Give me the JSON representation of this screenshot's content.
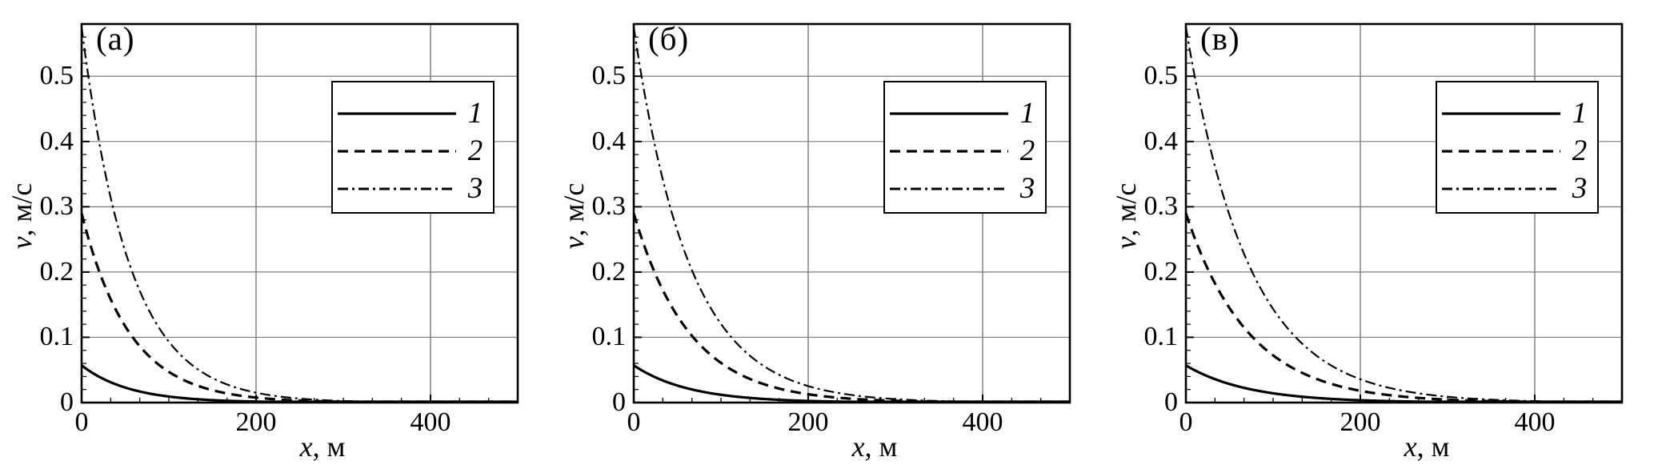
{
  "figure": {
    "background": "#ffffff",
    "panels": [
      {
        "label": "(а)"
      },
      {
        "label": "(б)"
      },
      {
        "label": "(в)"
      }
    ]
  },
  "axes": {
    "x": {
      "title_italic": "x",
      "title_rest": ", м",
      "min": 0,
      "max": 500,
      "tick_values": [
        0,
        200,
        400
      ],
      "tick_labels": [
        "0",
        "200",
        "400"
      ],
      "minor_divisions_per_major": 6
    },
    "y": {
      "title_italic": "v",
      "title_rest": ", м/с",
      "min": 0,
      "max": 0.58,
      "tick_values": [
        0,
        0.1,
        0.2,
        0.3,
        0.4,
        0.5
      ],
      "tick_labels": [
        "0",
        "0.1",
        "0.2",
        "0.3",
        "0.4",
        "0.5"
      ],
      "minor_step": 0.02
    }
  },
  "legend": {
    "entries": [
      {
        "label": "1",
        "line_style": "solid"
      },
      {
        "label": "2",
        "line_style": "dashed"
      },
      {
        "label": "3",
        "line_style": "dashdot"
      }
    ]
  },
  "line_styles": {
    "solid": {
      "stroke_width": 3.2,
      "dasharray": ""
    },
    "dashed": {
      "stroke_width": 3.2,
      "dasharray": "13 8"
    },
    "dashdot": {
      "stroke_width": 2.2,
      "dasharray": "13 5 3 5"
    }
  },
  "colors": {
    "curve": "#000000",
    "grid": "#7b7b7b",
    "axis": "#000000",
    "text": "#000000",
    "legend_border": "#000000",
    "background": "#ffffff"
  },
  "chart_data": [
    {
      "type": "line",
      "title": "(а)",
      "xlabel": "x, м",
      "ylabel": "v, м/с",
      "xlim": [
        0,
        500
      ],
      "ylim": [
        0,
        0.58
      ],
      "x_ticks": [
        0,
        200,
        400
      ],
      "y_ticks": [
        0,
        0.1,
        0.2,
        0.3,
        0.4,
        0.5
      ],
      "grid": true,
      "legend_position": "upper right",
      "x_sample_m": [
        0,
        50,
        100,
        150,
        200,
        250,
        300,
        350,
        400,
        450,
        500
      ],
      "series": [
        {
          "name": "1",
          "line_style": "solid",
          "v0": 0.057,
          "decay_length_m": 55,
          "values": [
            0.057,
            0.023,
            0.0093,
            0.0037,
            0.0015,
            0.0006,
            0.0002,
            0.0001,
            0,
            0,
            0
          ]
        },
        {
          "name": "2",
          "line_style": "dashed",
          "v0": 0.29,
          "decay_length_m": 55,
          "values": [
            0.29,
            0.1168,
            0.0471,
            0.019,
            0.0076,
            0.0031,
            0.0012,
            0.0005,
            0.0002,
            0.0001,
            0
          ]
        },
        {
          "name": "3",
          "line_style": "dashdot",
          "v0": 0.575,
          "decay_length_m": 55,
          "values": [
            0.575,
            0.2317,
            0.0933,
            0.0376,
            0.0152,
            0.0061,
            0.0025,
            0.001,
            0.0004,
            0.0002,
            0.0001
          ]
        }
      ]
    },
    {
      "type": "line",
      "title": "(б)",
      "xlabel": "x, м",
      "ylabel": "v, м/с",
      "xlim": [
        0,
        500
      ],
      "ylim": [
        0,
        0.58
      ],
      "x_ticks": [
        0,
        200,
        400
      ],
      "y_ticks": [
        0,
        0.1,
        0.2,
        0.3,
        0.4,
        0.5
      ],
      "grid": true,
      "legend_position": "upper right",
      "x_sample_m": [
        0,
        50,
        100,
        150,
        200,
        250,
        300,
        350,
        400,
        450,
        500
      ],
      "series": [
        {
          "name": "1",
          "line_style": "solid",
          "v0": 0.057,
          "decay_length_m": 64,
          "values": [
            0.057,
            0.0261,
            0.0119,
            0.0055,
            0.0025,
            0.0011,
            0.0005,
            0.0002,
            0.0001,
            0,
            0
          ]
        },
        {
          "name": "2",
          "line_style": "dashed",
          "v0": 0.29,
          "decay_length_m": 64,
          "values": [
            0.29,
            0.1328,
            0.0608,
            0.0278,
            0.0127,
            0.0058,
            0.0027,
            0.0012,
            0.0006,
            0.0003,
            0.0001
          ]
        },
        {
          "name": "3",
          "line_style": "dashdot",
          "v0": 0.575,
          "decay_length_m": 64,
          "values": [
            0.575,
            0.2633,
            0.1205,
            0.0552,
            0.0253,
            0.0116,
            0.0053,
            0.0024,
            0.0011,
            0.0005,
            0.0002
          ]
        }
      ]
    },
    {
      "type": "line",
      "title": "(в)",
      "xlabel": "x, м",
      "ylabel": "v, м/с",
      "xlim": [
        0,
        500
      ],
      "ylim": [
        0,
        0.58
      ],
      "x_ticks": [
        0,
        200,
        400
      ],
      "y_ticks": [
        0,
        0.1,
        0.2,
        0.3,
        0.4,
        0.5
      ],
      "grid": true,
      "legend_position": "upper right",
      "x_sample_m": [
        0,
        50,
        100,
        150,
        200,
        250,
        300,
        350,
        400,
        450,
        500
      ],
      "series": [
        {
          "name": "1",
          "line_style": "solid",
          "v0": 0.057,
          "decay_length_m": 72,
          "values": [
            0.057,
            0.0285,
            0.0142,
            0.0071,
            0.0035,
            0.0018,
            0.0009,
            0.0004,
            0.0002,
            0.0001,
            0.0001
          ]
        },
        {
          "name": "2",
          "line_style": "dashed",
          "v0": 0.29,
          "decay_length_m": 72,
          "values": [
            0.29,
            0.1448,
            0.0723,
            0.0361,
            0.018,
            0.009,
            0.0045,
            0.0022,
            0.0011,
            0.0006,
            0.0003
          ]
        },
        {
          "name": "3",
          "line_style": "dashdot",
          "v0": 0.575,
          "decay_length_m": 72,
          "values": [
            0.575,
            0.2872,
            0.1434,
            0.0716,
            0.0358,
            0.0179,
            0.0089,
            0.0045,
            0.0022,
            0.0011,
            0.0006
          ]
        }
      ]
    }
  ]
}
